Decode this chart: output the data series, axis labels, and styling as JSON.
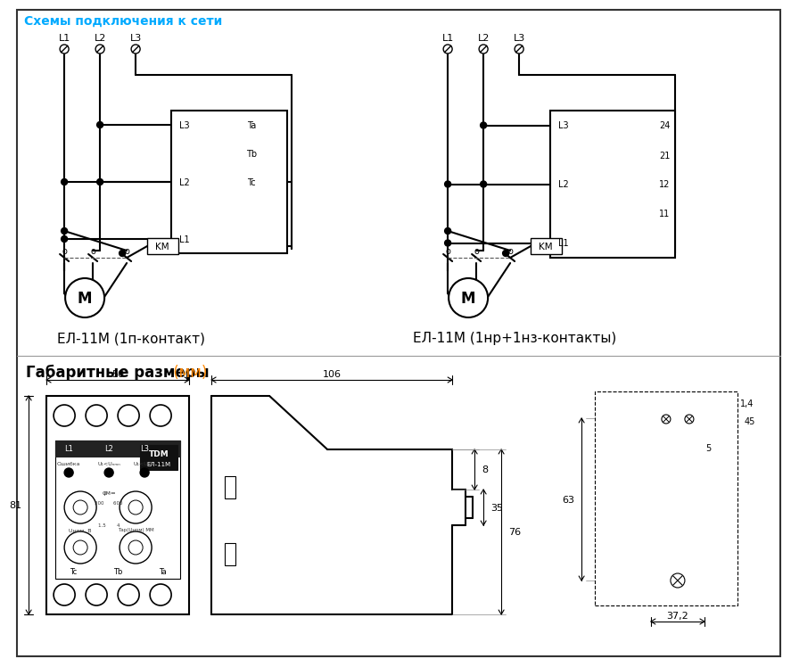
{
  "title": "Схемы подключения к сети",
  "title_color": "#00aaff",
  "bg_color": "#ffffff",
  "label1": "ЕЛ-11М (1п-контакт)",
  "label2": "ЕЛ-11М (1нр+1нз-контакты)",
  "dim_title": "Габаритные размеры",
  "dim_unit": " (мм)",
  "dim_unit_color": "#ff8800",
  "dim_50": "50",
  "dim_106": "106",
  "dim_8": "8",
  "dim_81": "81",
  "dim_35": "35",
  "dim_76": "76",
  "dim_63": "63",
  "dim_14": "1,4",
  "dim_45": "45",
  "dim_5": "5",
  "dim_372": "37,2"
}
